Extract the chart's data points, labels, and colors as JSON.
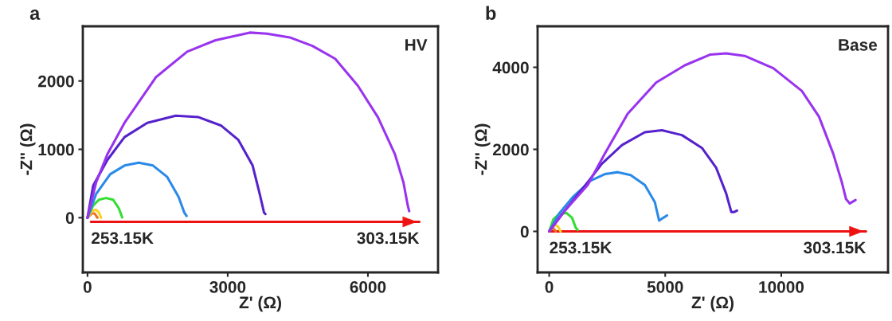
{
  "chart_data": [
    {
      "type": "line",
      "title": "a",
      "xlabel": "Z' (Ω)",
      "ylabel": "-Z\" (Ω)",
      "xlim": [
        -100,
        7500
      ],
      "ylim": [
        -800,
        2800
      ],
      "xticks": [
        0,
        3000,
        6000
      ],
      "yticks": [
        0,
        1000,
        2000
      ],
      "grid": false,
      "legend": false,
      "marker": "none",
      "line_style": "solid",
      "annotations": [
        "HV",
        "253.15K",
        "303.15K"
      ],
      "series": [
        {
          "color": "#f07020",
          "x": [
            0,
            91,
            152,
            213
          ],
          "values": [
            0,
            62,
            62,
            0
          ]
        },
        {
          "color": "#ffd020",
          "x": [
            0,
            91,
            183,
            244,
            292
          ],
          "values": [
            0,
            96,
            117,
            75,
            0
          ]
        },
        {
          "color": "#33dd33",
          "x": [
            0,
            122,
            244,
            396,
            548,
            670,
            743
          ],
          "values": [
            0,
            179,
            263,
            288,
            263,
            138,
            4
          ]
        },
        {
          "color": "#2a8ae8",
          "x": [
            0,
            183,
            487,
            792,
            1096,
            1401,
            1706,
            1949,
            2071,
            2120
          ],
          "values": [
            0,
            346,
            638,
            763,
            804,
            763,
            596,
            304,
            75,
            25
          ]
        },
        {
          "color": "#5522cc",
          "x": [
            0,
            122,
            426,
            792,
            1279,
            1888,
            2376,
            2863,
            3228,
            3533,
            3685,
            3777,
            3807
          ],
          "values": [
            0,
            471,
            846,
            1179,
            1388,
            1492,
            1471,
            1346,
            1138,
            763,
            346,
            75,
            54
          ]
        },
        {
          "color": "#ee1111",
          "x": [
            75,
            7100
          ],
          "values": [
            -60,
            -60
          ]
        },
        {
          "color": "#9933ee",
          "x": [
            0,
            183,
            426,
            792,
            1462,
            2132,
            2741,
            3472,
            3837,
            4325,
            4812,
            5299,
            5786,
            6213,
            6578,
            6761,
            6852,
            6883
          ],
          "values": [
            0,
            513,
            929,
            1388,
            2054,
            2429,
            2596,
            2708,
            2692,
            2638,
            2513,
            2325,
            1929,
            1471,
            929,
            513,
            179,
            96
          ]
        }
      ]
    },
    {
      "type": "line",
      "title": "b",
      "xlabel": "Z' (Ω)",
      "ylabel": "-Z\" (Ω)",
      "xlim": [
        -500,
        14600
      ],
      "ylim": [
        -1000,
        5000
      ],
      "xticks": [
        0,
        5000,
        10000
      ],
      "yticks": [
        0,
        2000,
        4000
      ],
      "grid": false,
      "legend": false,
      "marker": "none",
      "line_style": "solid",
      "annotations": [
        "Base",
        "253.15K",
        "303.15K"
      ],
      "series": [
        {
          "color": "#ee1111",
          "x": [
            0,
            13650
          ],
          "values": [
            0,
            0
          ]
        },
        {
          "color": "#f07020",
          "x": [
            0,
            160,
            283
          ],
          "values": [
            0,
            90,
            0
          ]
        },
        {
          "color": "#ffd020",
          "x": [
            0,
            246,
            369,
            492
          ],
          "values": [
            0,
            160,
            125,
            0
          ]
        },
        {
          "color": "#33dd33",
          "x": [
            0,
            185,
            431,
            738,
            984,
            1144,
            1230
          ],
          "values": [
            0,
            299,
            424,
            451,
            333,
            90,
            35
          ]
        },
        {
          "color": "#2a8ae8",
          "x": [
            0,
            431,
            1046,
            1784,
            2399,
            2952,
            3506,
            4121,
            4551,
            4736,
            4920,
            5080
          ],
          "values": [
            0,
            437,
            854,
            1236,
            1396,
            1444,
            1375,
            1132,
            715,
            264,
            333,
            389
          ]
        },
        {
          "color": "#5522cc",
          "x": [
            0,
            677,
            1661,
            2276,
            3137,
            4121,
            4859,
            5720,
            6581,
            7196,
            7626,
            7847,
            7970,
            8093
          ],
          "values": [
            0,
            507,
            1201,
            1653,
            2104,
            2417,
            2465,
            2347,
            2035,
            1549,
            924,
            472,
            472,
            507
          ]
        },
        {
          "color": "#9933ee",
          "x": [
            0,
            677,
            1661,
            2399,
            3383,
            4613,
            5843,
            6950,
            7626,
            8426,
            9656,
            10886,
            11624,
            12239,
            12608,
            12793,
            12953,
            13199
          ],
          "values": [
            0,
            507,
            1132,
            1896,
            2868,
            3632,
            4049,
            4312,
            4340,
            4278,
            3979,
            3424,
            2799,
            1896,
            1201,
            785,
            681,
            764
          ]
        }
      ]
    }
  ]
}
